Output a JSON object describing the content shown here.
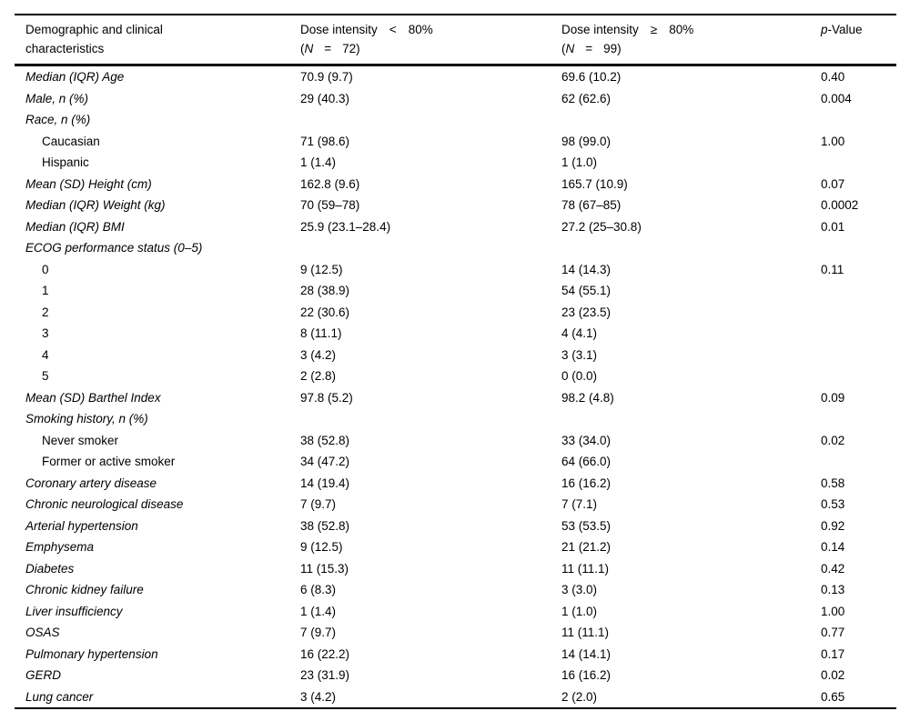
{
  "colors": {
    "background": "#ffffff",
    "text": "#000000",
    "rule": "#000000"
  },
  "table": {
    "header": {
      "label_line1": "Demographic and clinical",
      "label_line2": "characteristics",
      "group1": {
        "title": "Dose intensity",
        "op": "<",
        "threshold": "80%",
        "n_open": "(",
        "n_label": "N",
        "n_eq": "=",
        "n_value": "72)"
      },
      "group2": {
        "title": "Dose intensity",
        "op": "≥",
        "threshold": "80%",
        "n_open": "(",
        "n_label": "N",
        "n_eq": "=",
        "n_value": "99)"
      },
      "pvalue": {
        "italic_part": "p",
        "rest": "-Value"
      }
    },
    "rows": [
      {
        "label": "Median (IQR) Age",
        "italic": true,
        "indent": false,
        "v1": "70.9 (9.7)",
        "v2": "69.6 (10.2)",
        "p": "0.40"
      },
      {
        "label": "Male, n (%)",
        "italic": true,
        "indent": false,
        "v1": "29 (40.3)",
        "v2": "62 (62.6)",
        "p": "0.004"
      },
      {
        "label": "Race, n (%)",
        "italic": true,
        "indent": false,
        "v1": "",
        "v2": "",
        "p": ""
      },
      {
        "label": "Caucasian",
        "italic": false,
        "indent": true,
        "v1": "71 (98.6)",
        "v2": "98 (99.0)",
        "p": "1.00"
      },
      {
        "label": "Hispanic",
        "italic": false,
        "indent": true,
        "v1": "1 (1.4)",
        "v2": "1 (1.0)",
        "p": ""
      },
      {
        "label": "Mean (SD) Height (cm)",
        "italic": true,
        "indent": false,
        "v1": "162.8 (9.6)",
        "v2": "165.7 (10.9)",
        "p": "0.07"
      },
      {
        "label": "Median (IQR) Weight (kg)",
        "italic": true,
        "indent": false,
        "v1": "70 (59–78)",
        "v2": "78 (67–85)",
        "p": "0.0002"
      },
      {
        "label": "Median (IQR) BMI",
        "italic": true,
        "indent": false,
        "v1": "25.9 (23.1–28.4)",
        "v2": "27.2 (25–30.8)",
        "p": "0.01"
      },
      {
        "label": "ECOG performance status (0–5)",
        "italic": true,
        "indent": false,
        "v1": "",
        "v2": "",
        "p": ""
      },
      {
        "label": "0",
        "italic": false,
        "indent": true,
        "v1": "9 (12.5)",
        "v2": "14 (14.3)",
        "p": "0.11"
      },
      {
        "label": "1",
        "italic": false,
        "indent": true,
        "v1": "28 (38.9)",
        "v2": "54 (55.1)",
        "p": ""
      },
      {
        "label": "2",
        "italic": false,
        "indent": true,
        "v1": "22 (30.6)",
        "v2": "23 (23.5)",
        "p": ""
      },
      {
        "label": "3",
        "italic": false,
        "indent": true,
        "v1": "8 (11.1)",
        "v2": "4 (4.1)",
        "p": ""
      },
      {
        "label": "4",
        "italic": false,
        "indent": true,
        "v1": "3 (4.2)",
        "v2": "3 (3.1)",
        "p": ""
      },
      {
        "label": "5",
        "italic": false,
        "indent": true,
        "v1": "2 (2.8)",
        "v2": "0 (0.0)",
        "p": ""
      },
      {
        "label": "Mean (SD) Barthel Index",
        "italic": true,
        "indent": false,
        "v1": "97.8 (5.2)",
        "v2": "98.2 (4.8)",
        "p": "0.09"
      },
      {
        "label": "Smoking history, n (%)",
        "italic": true,
        "indent": false,
        "v1": "",
        "v2": "",
        "p": ""
      },
      {
        "label": "Never smoker",
        "italic": false,
        "indent": true,
        "v1": "38 (52.8)",
        "v2": "33 (34.0)",
        "p": "0.02"
      },
      {
        "label": "Former or active smoker",
        "italic": false,
        "indent": true,
        "v1": "34 (47.2)",
        "v2": "64 (66.0)",
        "p": ""
      },
      {
        "label": "Coronary artery disease",
        "italic": true,
        "indent": false,
        "v1": "14 (19.4)",
        "v2": "16 (16.2)",
        "p": "0.58"
      },
      {
        "label": "Chronic neurological disease",
        "italic": true,
        "indent": false,
        "v1": "7 (9.7)",
        "v2": "7 (7.1)",
        "p": "0.53"
      },
      {
        "label": "Arterial hypertension",
        "italic": true,
        "indent": false,
        "v1": "38 (52.8)",
        "v2": "53 (53.5)",
        "p": "0.92"
      },
      {
        "label": "Emphysema",
        "italic": true,
        "indent": false,
        "v1": "9 (12.5)",
        "v2": "21 (21.2)",
        "p": "0.14"
      },
      {
        "label": "Diabetes",
        "italic": true,
        "indent": false,
        "v1": "11 (15.3)",
        "v2": "11 (11.1)",
        "p": "0.42"
      },
      {
        "label": "Chronic kidney failure",
        "italic": true,
        "indent": false,
        "v1": "6 (8.3)",
        "v2": "3 (3.0)",
        "p": "0.13"
      },
      {
        "label": "Liver insufficiency",
        "italic": true,
        "indent": false,
        "v1": "1 (1.4)",
        "v2": "1 (1.0)",
        "p": "1.00"
      },
      {
        "label": "OSAS",
        "italic": true,
        "indent": false,
        "v1": "7 (9.7)",
        "v2": "11 (11.1)",
        "p": "0.77"
      },
      {
        "label": "Pulmonary hypertension",
        "italic": true,
        "indent": false,
        "v1": "16 (22.2)",
        "v2": "14 (14.1)",
        "p": "0.17"
      },
      {
        "label": "GERD",
        "italic": true,
        "indent": false,
        "v1": "23 (31.9)",
        "v2": "16 (16.2)",
        "p": "0.02"
      },
      {
        "label": "Lung cancer",
        "italic": true,
        "indent": false,
        "v1": "3 (4.2)",
        "v2": "2 (2.0)",
        "p": "0.65"
      }
    ]
  }
}
